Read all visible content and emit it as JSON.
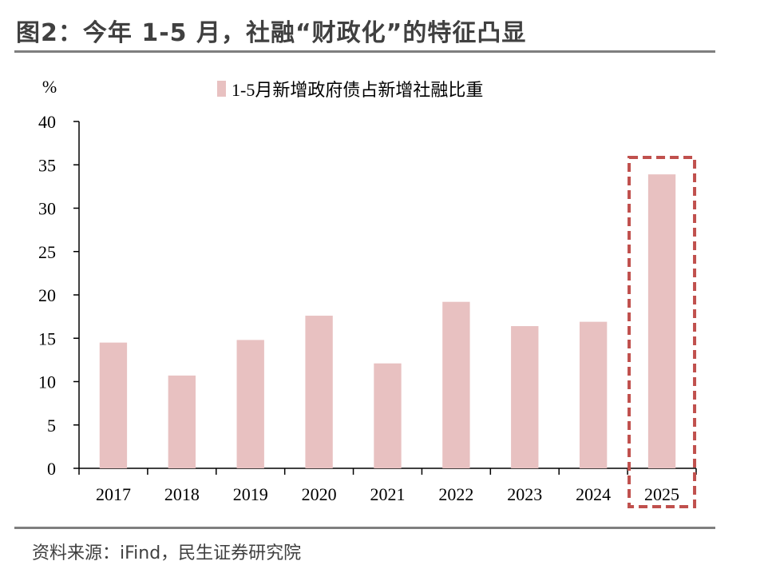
{
  "figure": {
    "title": "图2：今年 1-5 月，社融“财政化”的特征凸显",
    "source": "资料来源：iFind，民生证券研究院"
  },
  "chart_data": {
    "type": "bar",
    "title": "",
    "xlabel": "",
    "ylabel": "%",
    "ylim": [
      0,
      40
    ],
    "yticks": [
      0,
      5,
      10,
      15,
      20,
      25,
      30,
      35,
      40
    ],
    "categories": [
      "2017",
      "2018",
      "2019",
      "2020",
      "2021",
      "2022",
      "2023",
      "2024",
      "2025"
    ],
    "series": [
      {
        "name": "1-5月新增政府债占新增社融比重",
        "values": [
          14.5,
          10.7,
          14.8,
          17.6,
          12.1,
          19.2,
          16.4,
          16.9,
          33.9
        ]
      }
    ],
    "legend_position": "top-center",
    "highlight_category": "2025",
    "colors": {
      "bar": "#e8c1c1",
      "highlight_box": "#c0504d",
      "axis": "#000000"
    }
  }
}
